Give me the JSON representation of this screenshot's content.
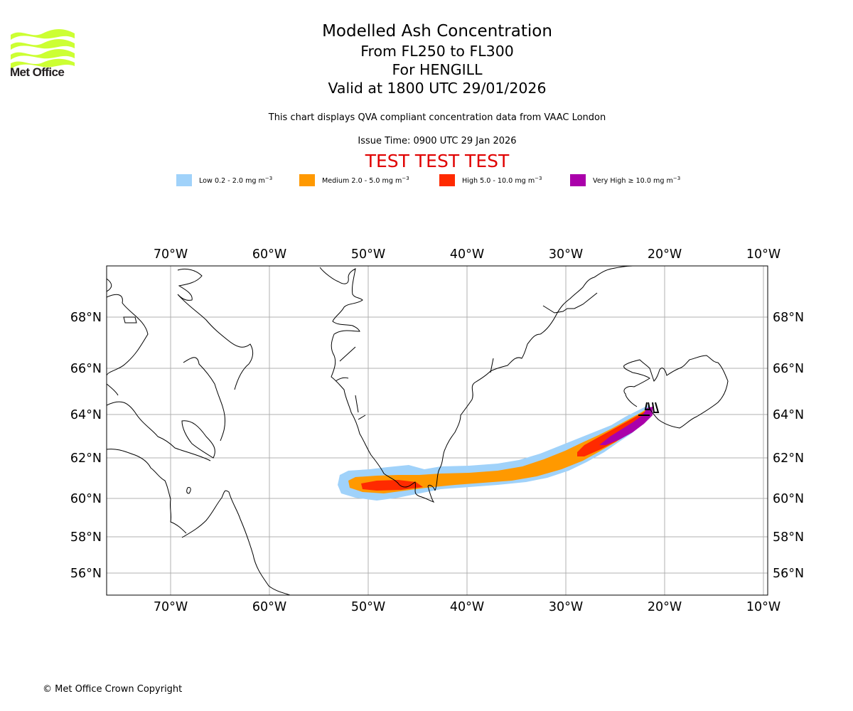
{
  "logo": {
    "brand": "Met Office",
    "color": "#ccff33"
  },
  "header": {
    "title": "Modelled Ash Concentration",
    "levels": "From FL250 to FL300",
    "volcano": "For HENGILL",
    "valid": "Valid at 1800 UTC 29/01/2026",
    "description": "This chart displays QVA compliant concentration data from VAAC London",
    "issue_time": "Issue Time: 0900 UTC 29 Jan 2026",
    "test_banner": "TEST TEST TEST"
  },
  "legend": [
    {
      "name": "low",
      "label": "Low 0.2 - 2.0 mg m",
      "exp": "−3",
      "color": "#a0d2fa"
    },
    {
      "name": "medium",
      "label": "Medium 2.0 - 5.0 mg m",
      "exp": "−3",
      "color": "#ff9900"
    },
    {
      "name": "high",
      "label": "High 5.0 - 10.0 mg m",
      "exp": "−3",
      "color": "#ff2a00"
    },
    {
      "name": "very-high",
      "label": "Very High ≥ 10.0 mg m",
      "exp": "−3",
      "color": "#aa00aa"
    }
  ],
  "map": {
    "lon_range": [
      -76.5,
      -9.6
    ],
    "lat_range": [
      55,
      70
    ],
    "lon_ticks": [
      {
        "value": -70,
        "label": "70°W"
      },
      {
        "value": -60,
        "label": "60°W"
      },
      {
        "value": -50,
        "label": "50°W"
      },
      {
        "value": -40,
        "label": "40°W"
      },
      {
        "value": -30,
        "label": "30°W"
      },
      {
        "value": -20,
        "label": "20°W"
      },
      {
        "value": -10,
        "label": "10°W"
      }
    ],
    "lat_ticks": [
      {
        "value": 68,
        "label": "68°N"
      },
      {
        "value": 66,
        "label": "66°N"
      },
      {
        "value": 64,
        "label": "64°N"
      },
      {
        "value": 62,
        "label": "62°N"
      },
      {
        "value": 60,
        "label": "60°N"
      },
      {
        "value": 58,
        "label": "58°N"
      },
      {
        "value": 56,
        "label": "56°N"
      }
    ],
    "volcano_location": {
      "lon": -21.3,
      "lat": 64.1
    }
  },
  "footer": {
    "copyright": "© Met Office Crown Copyright"
  }
}
